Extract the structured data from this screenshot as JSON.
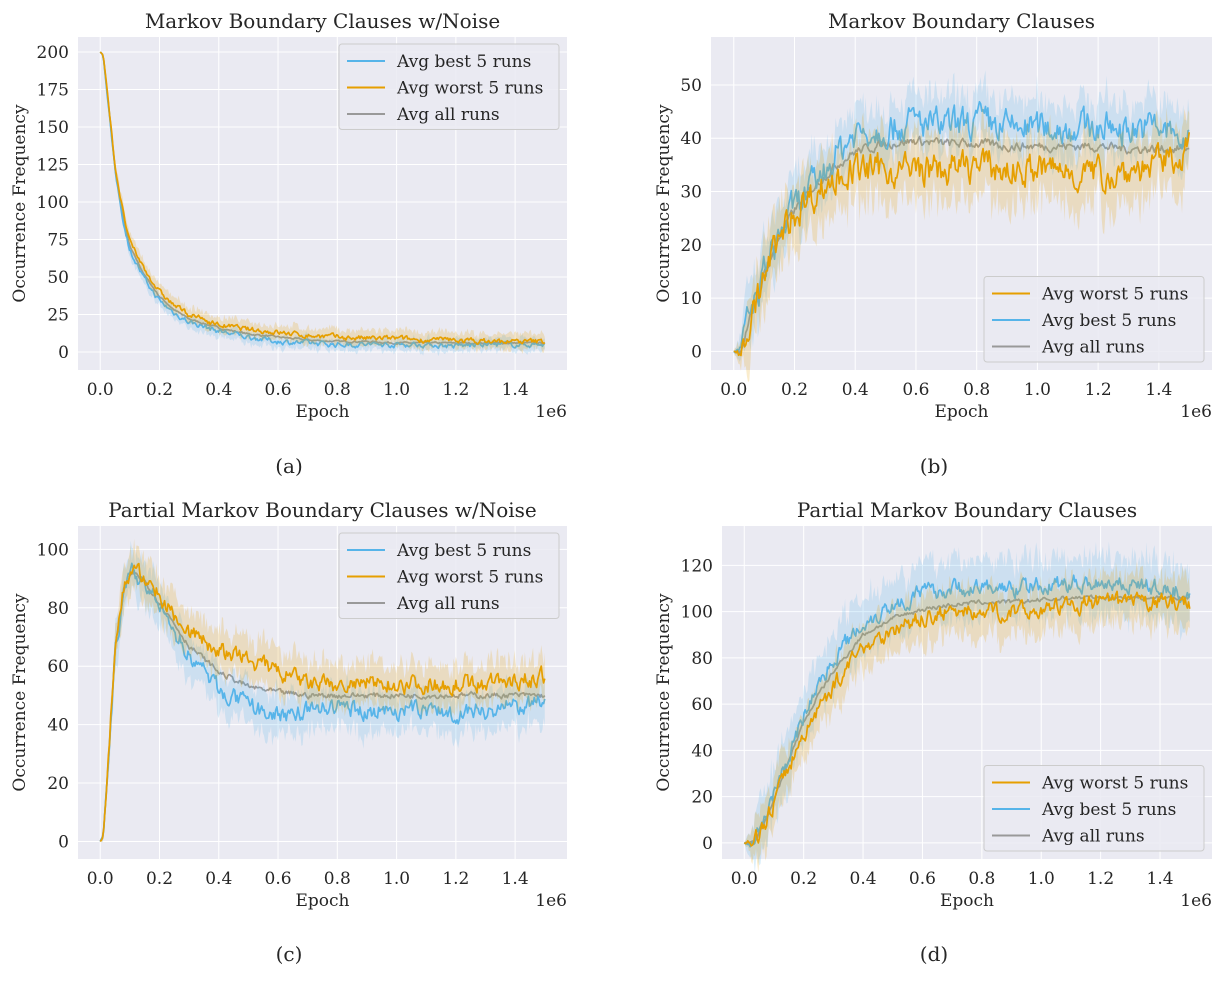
{
  "colors": {
    "best": "#56b4e9",
    "worst": "#e69f00",
    "all": "#999999",
    "panel_bg": "#eaeaf2",
    "grid": "#ffffff"
  },
  "captions": [
    "(a)",
    "(b)",
    "(c)",
    "(d)"
  ],
  "chart_data": [
    {
      "type": "line",
      "title": "Markov Boundary Clauses w/Noise",
      "xlabel": "Epoch",
      "ylabel": "Occurrence Frequency",
      "x_offset_text": "1e6",
      "xlim": [
        -0.075,
        1.575
      ],
      "ylim": [
        -12,
        210
      ],
      "xticks": [
        0.0,
        0.2,
        0.4,
        0.6,
        0.8,
        1.0,
        1.2,
        1.4
      ],
      "xtick_labels": [
        "0.0",
        "0.2",
        "0.4",
        "0.6",
        "0.8",
        "1.0",
        "1.2",
        "1.4"
      ],
      "yticks": [
        0,
        25,
        50,
        75,
        100,
        125,
        150,
        175,
        200
      ],
      "ytick_labels": [
        "0",
        "25",
        "50",
        "75",
        "100",
        "125",
        "150",
        "175",
        "200"
      ],
      "grid": true,
      "legend_position": "top-right",
      "legend": [
        "Avg best 5 runs",
        "Avg worst 5 runs",
        "Avg all runs"
      ],
      "x": [
        0.0,
        0.01,
        0.03,
        0.05,
        0.08,
        0.1,
        0.15,
        0.2,
        0.25,
        0.3,
        0.4,
        0.5,
        0.6,
        0.7,
        0.8,
        0.9,
        1.0,
        1.1,
        1.2,
        1.3,
        1.4,
        1.5
      ],
      "series": [
        {
          "name": "Avg best 5 runs",
          "color_key": "best",
          "values": [
            200,
            198,
            160,
            120,
            85,
            68,
            48,
            34,
            26,
            20,
            14,
            10,
            7,
            6,
            5,
            5,
            5,
            5,
            4,
            5,
            5,
            5
          ],
          "band": 4,
          "noise": 1.5
        },
        {
          "name": "Avg worst 5 runs",
          "color_key": "worst",
          "values": [
            200,
            198,
            162,
            124,
            90,
            73,
            55,
            40,
            31,
            25,
            18,
            15,
            13,
            11,
            10,
            9,
            9,
            8,
            8,
            7,
            7,
            7
          ],
          "band": 5,
          "noise": 1.5
        },
        {
          "name": "Avg all runs",
          "color_key": "all",
          "values": [
            200,
            198,
            161,
            122,
            87,
            70,
            51,
            37,
            28,
            22,
            16,
            12,
            10,
            8,
            7,
            7,
            6,
            6,
            6,
            6,
            6,
            6
          ],
          "band": 0,
          "noise": 0.5
        }
      ]
    },
    {
      "type": "line",
      "title": "Markov Boundary Clauses",
      "xlabel": "Epoch",
      "ylabel": "Occurrence Frequency",
      "x_offset_text": "1e6",
      "xlim": [
        -0.075,
        1.575
      ],
      "ylim": [
        -3.5,
        59
      ],
      "xticks": [
        0.0,
        0.2,
        0.4,
        0.6,
        0.8,
        1.0,
        1.2,
        1.4
      ],
      "xtick_labels": [
        "0.0",
        "0.2",
        "0.4",
        "0.6",
        "0.8",
        "1.0",
        "1.2",
        "1.4"
      ],
      "yticks": [
        0,
        10,
        20,
        30,
        40,
        50
      ],
      "ytick_labels": [
        "0",
        "10",
        "20",
        "30",
        "40",
        "50"
      ],
      "grid": true,
      "legend_position": "bottom-right",
      "legend": [
        "Avg worst 5 runs",
        "Avg best 5 runs",
        "Avg all runs"
      ],
      "x": [
        0.0,
        0.02,
        0.03,
        0.05,
        0.08,
        0.1,
        0.15,
        0.2,
        0.25,
        0.3,
        0.35,
        0.4,
        0.5,
        0.6,
        0.7,
        0.8,
        0.9,
        1.0,
        1.1,
        1.2,
        1.3,
        1.4,
        1.5
      ],
      "series": [
        {
          "name": "Avg best 5 runs",
          "color_key": "best",
          "values": [
            0,
            0,
            2,
            6,
            11,
            15,
            22,
            27,
            30,
            34,
            38,
            41,
            42,
            43,
            42,
            43,
            42,
            42,
            42,
            42,
            42,
            42,
            39
          ],
          "band": 5,
          "noise": 2.5
        },
        {
          "name": "Avg worst 5 runs",
          "color_key": "worst",
          "values": [
            0,
            0,
            1,
            5,
            10,
            14,
            21,
            26,
            29,
            31,
            33,
            34,
            34,
            34,
            34,
            35,
            34,
            34,
            34,
            33,
            34,
            35,
            38
          ],
          "band": 6,
          "noise": 2.5
        },
        {
          "name": "Avg all runs",
          "color_key": "all",
          "values": [
            0,
            0,
            1.5,
            5.5,
            10.5,
            14.5,
            21.5,
            26.5,
            30,
            33,
            35.5,
            37.5,
            39,
            39.5,
            39,
            39,
            38.5,
            38.5,
            38.5,
            38.5,
            38,
            38,
            38
          ],
          "band": 0,
          "noise": 0.7
        }
      ]
    },
    {
      "type": "line",
      "title": "Partial Markov Boundary Clauses w/Noise",
      "xlabel": "Epoch",
      "ylabel": "Occurrence Frequency",
      "x_offset_text": "1e6",
      "xlim": [
        -0.075,
        1.575
      ],
      "ylim": [
        -6,
        108
      ],
      "xticks": [
        0.0,
        0.2,
        0.4,
        0.6,
        0.8,
        1.0,
        1.2,
        1.4
      ],
      "xtick_labels": [
        "0.0",
        "0.2",
        "0.4",
        "0.6",
        "0.8",
        "1.0",
        "1.2",
        "1.4"
      ],
      "yticks": [
        0,
        20,
        40,
        60,
        80,
        100
      ],
      "ytick_labels": [
        "0",
        "20",
        "40",
        "60",
        "80",
        "100"
      ],
      "grid": true,
      "legend_position": "top-right",
      "legend": [
        "Avg best 5 runs",
        "Avg worst 5 runs",
        "Avg all runs"
      ],
      "x": [
        0.0,
        0.01,
        0.03,
        0.05,
        0.08,
        0.11,
        0.15,
        0.2,
        0.3,
        0.4,
        0.5,
        0.6,
        0.7,
        0.8,
        0.9,
        1.0,
        1.1,
        1.2,
        1.3,
        1.4,
        1.5
      ],
      "series": [
        {
          "name": "Avg best 5 runs",
          "color_key": "best",
          "values": [
            0,
            2,
            30,
            65,
            85,
            92,
            88,
            80,
            64,
            52,
            46,
            43,
            45,
            46,
            45,
            45,
            45,
            44,
            45,
            46,
            47
          ],
          "band": 7,
          "noise": 2.5
        },
        {
          "name": "Avg worst 5 runs",
          "color_key": "worst",
          "values": [
            0,
            2,
            32,
            68,
            88,
            93,
            90,
            84,
            72,
            65,
            62,
            58,
            54,
            53,
            54,
            54,
            54,
            54,
            54,
            55,
            56
          ],
          "band": 7,
          "noise": 2.5
        },
        {
          "name": "Avg all runs",
          "color_key": "all",
          "values": [
            0,
            2,
            31,
            66,
            86,
            92,
            89,
            82,
            67,
            58,
            53,
            51,
            50,
            50,
            50,
            50,
            50,
            50,
            50,
            50,
            50
          ],
          "band": 0,
          "noise": 0.8
        }
      ]
    },
    {
      "type": "line",
      "title": "Partial Markov Boundary Clauses",
      "xlabel": "Epoch",
      "ylabel": "Occurrence Frequency",
      "x_offset_text": "1e6",
      "xlim": [
        -0.075,
        1.575
      ],
      "ylim": [
        -7,
        137
      ],
      "xticks": [
        0.0,
        0.2,
        0.4,
        0.6,
        0.8,
        1.0,
        1.2,
        1.4
      ],
      "xtick_labels": [
        "0.0",
        "0.2",
        "0.4",
        "0.6",
        "0.8",
        "1.0",
        "1.2",
        "1.4"
      ],
      "yticks": [
        0,
        20,
        40,
        60,
        80,
        100,
        120
      ],
      "ytick_labels": [
        "0",
        "20",
        "40",
        "60",
        "80",
        "100",
        "120"
      ],
      "grid": true,
      "legend_position": "bottom-right",
      "legend": [
        "Avg worst 5 runs",
        "Avg best 5 runs",
        "Avg all runs"
      ],
      "x": [
        0.0,
        0.03,
        0.05,
        0.1,
        0.15,
        0.2,
        0.25,
        0.3,
        0.35,
        0.4,
        0.5,
        0.6,
        0.7,
        0.8,
        0.9,
        1.0,
        1.1,
        1.2,
        1.3,
        1.4,
        1.5
      ],
      "series": [
        {
          "name": "Avg best 5 runs",
          "color_key": "best",
          "values": [
            0,
            0,
            5,
            20,
            38,
            55,
            68,
            80,
            88,
            95,
            103,
            108,
            110,
            110,
            110,
            111,
            112,
            113,
            112,
            110,
            108
          ],
          "band": 12,
          "noise": 3
        },
        {
          "name": "Avg worst 5 runs",
          "color_key": "worst",
          "values": [
            0,
            0,
            3,
            17,
            33,
            47,
            58,
            68,
            76,
            85,
            92,
            97,
            100,
            100,
            100,
            101,
            103,
            104,
            104,
            104,
            104
          ],
          "band": 10,
          "noise": 3
        },
        {
          "name": "Avg all runs",
          "color_key": "all",
          "values": [
            0,
            0,
            4,
            18,
            36,
            52,
            64,
            74,
            82,
            90,
            97,
            101,
            103,
            104,
            104,
            105,
            106,
            106,
            106,
            106,
            106
          ],
          "band": 0,
          "noise": 0.8
        }
      ]
    }
  ]
}
